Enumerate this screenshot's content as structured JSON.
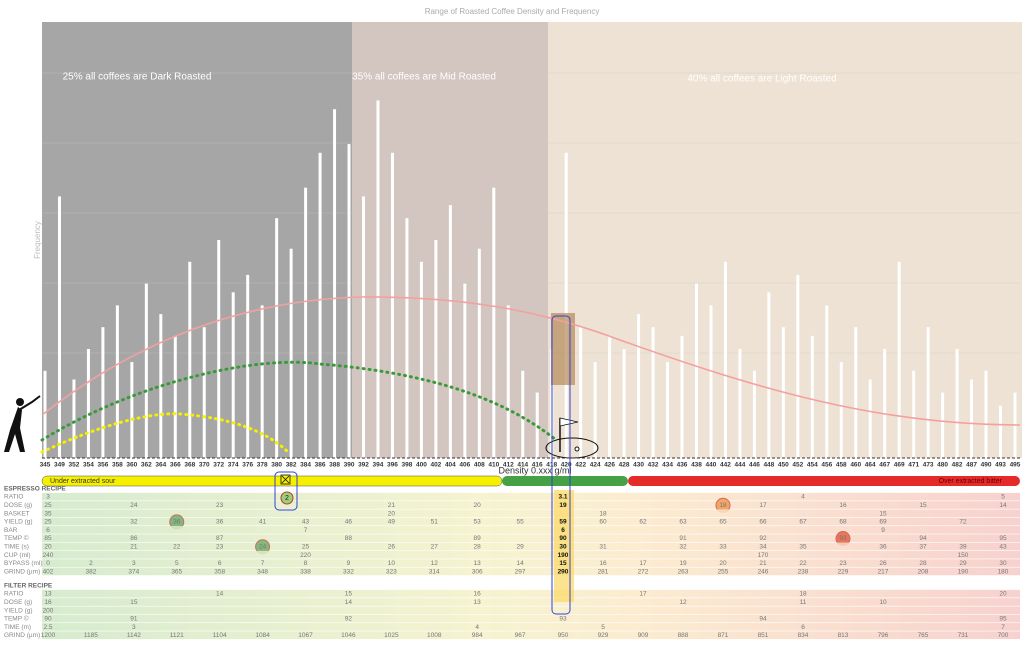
{
  "chart_data": {
    "type": "bar",
    "title": "Range of Roasted Coffee Density and Frequency",
    "ylabel": "Frequency",
    "xlabel": "Density 0.xxx g/ml",
    "zones": [
      "25% all coffees are Dark Roasted",
      "35% all coffees are Mid Roasted",
      "40% all coffees are Light Roasted"
    ],
    "extraction": [
      "Under extracted sour",
      "Over extracted bitter"
    ],
    "annotation": "2",
    "categories": [
      "345",
      "349",
      "352",
      "354",
      "356",
      "358",
      "360",
      "362",
      "364",
      "366",
      "368",
      "370",
      "372",
      "374",
      "376",
      "378",
      "380",
      "382",
      "384",
      "386",
      "388",
      "390",
      "392",
      "394",
      "396",
      "398",
      "400",
      "402",
      "404",
      "406",
      "408",
      "410",
      "412",
      "414",
      "416",
      "418",
      "420",
      "422",
      "424",
      "426",
      "428",
      "430",
      "432",
      "434",
      "436",
      "438",
      "440",
      "442",
      "444",
      "446",
      "448",
      "450",
      "452",
      "454",
      "456",
      "458",
      "460",
      "464",
      "467",
      "469",
      "471",
      "473",
      "480",
      "482",
      "487",
      "490",
      "493",
      "495"
    ],
    "values": [
      20,
      60,
      18,
      25,
      30,
      35,
      22,
      40,
      33,
      28,
      45,
      30,
      50,
      38,
      42,
      35,
      55,
      48,
      62,
      70,
      80,
      72,
      60,
      82,
      70,
      55,
      45,
      50,
      58,
      40,
      48,
      62,
      35,
      20,
      15,
      25,
      70,
      30,
      22,
      28,
      25,
      33,
      30,
      22,
      28,
      40,
      35,
      45,
      25,
      20,
      38,
      30,
      42,
      28,
      35,
      22,
      30,
      18,
      25,
      45,
      20,
      30,
      15,
      25,
      18,
      20,
      12,
      15
    ],
    "color": "#ffffff",
    "ylim": [
      0,
      100
    ]
  },
  "espresso_recipe": {
    "title": "ESPRESSO RECIPE",
    "rows": [
      {
        "label": "RATIO",
        "values": [
          3,
          null,
          null,
          null,
          null,
          null,
          null,
          null,
          null,
          null,
          null,
          null,
          3.1,
          null,
          null,
          null,
          null,
          null,
          4,
          null,
          null,
          null,
          null,
          5
        ]
      },
      {
        "label": "DOSE (g)",
        "values": [
          25,
          null,
          24,
          null,
          23,
          null,
          null,
          null,
          21,
          null,
          20,
          null,
          19,
          null,
          null,
          null,
          18,
          17,
          null,
          16,
          null,
          15,
          null,
          14
        ]
      },
      {
        "label": "BASKET",
        "values": [
          35,
          null,
          null,
          null,
          null,
          null,
          null,
          null,
          20,
          null,
          null,
          null,
          null,
          18,
          null,
          null,
          null,
          null,
          null,
          null,
          15,
          null,
          null,
          null
        ]
      },
      {
        "label": "YIELD (g)",
        "values": [
          25,
          null,
          32,
          36,
          36,
          41,
          43,
          46,
          49,
          51,
          53,
          55,
          59,
          60,
          62,
          63,
          65,
          66,
          67,
          68,
          69,
          null,
          72,
          null
        ]
      },
      {
        "label": "BAR",
        "values": [
          6,
          null,
          null,
          null,
          null,
          null,
          7,
          null,
          null,
          null,
          null,
          null,
          6,
          null,
          null,
          null,
          null,
          null,
          null,
          null,
          9,
          null,
          null,
          null
        ]
      },
      {
        "label": "TEMP ©",
        "values": [
          85,
          null,
          86,
          null,
          87,
          null,
          null,
          88,
          null,
          null,
          89,
          null,
          90,
          null,
          null,
          91,
          null,
          92,
          null,
          93,
          null,
          94,
          null,
          95
        ]
      },
      {
        "label": "TIME (s)",
        "values": [
          20,
          null,
          21,
          22,
          23,
          24,
          25,
          null,
          26,
          27,
          28,
          29,
          30,
          31,
          null,
          32,
          33,
          34,
          35,
          null,
          36,
          37,
          39,
          43
        ]
      },
      {
        "label": "CUP (ml)",
        "values": [
          240,
          null,
          null,
          null,
          null,
          null,
          220,
          null,
          null,
          null,
          null,
          null,
          190,
          null,
          null,
          null,
          null,
          170,
          null,
          null,
          null,
          null,
          150,
          null
        ]
      },
      {
        "label": "BYPASS (ml)",
        "values": [
          0,
          2,
          3,
          5,
          6,
          7,
          8,
          9,
          10,
          12,
          13,
          14,
          15,
          16,
          17,
          19,
          20,
          21,
          22,
          23,
          26,
          28,
          29,
          30
        ]
      },
      {
        "label": "GRIND (µm)",
        "values": [
          402,
          382,
          374,
          365,
          358,
          348,
          338,
          332,
          323,
          314,
          306,
          297,
          290,
          281,
          272,
          263,
          255,
          246,
          238,
          229,
          217,
          208,
          190,
          180
        ]
      }
    ]
  },
  "filter_recipe": {
    "title": "FILTER RECIPE",
    "rows": [
      {
        "label": "RATIO",
        "values": [
          13,
          null,
          null,
          null,
          14,
          null,
          null,
          15,
          null,
          null,
          16,
          null,
          null,
          null,
          17,
          null,
          null,
          null,
          18,
          null,
          null,
          null,
          null,
          20
        ]
      },
      {
        "label": "DOSE (g)",
        "values": [
          16,
          null,
          15,
          null,
          null,
          null,
          null,
          14,
          null,
          null,
          13,
          null,
          null,
          null,
          null,
          12,
          null,
          null,
          11,
          null,
          10,
          null,
          null,
          null
        ]
      },
      {
        "label": "YIELD (g)",
        "values": [
          200,
          null,
          null,
          null,
          null,
          null,
          null,
          null,
          null,
          null,
          null,
          null,
          null,
          null,
          null,
          null,
          null,
          null,
          null,
          null,
          null,
          null,
          null,
          null
        ]
      },
      {
        "label": "TEMP ©",
        "values": [
          90,
          null,
          91,
          null,
          null,
          null,
          null,
          92,
          null,
          null,
          null,
          null,
          93,
          null,
          null,
          null,
          null,
          94,
          null,
          null,
          null,
          null,
          null,
          95
        ]
      },
      {
        "label": "TIME (m)",
        "values": [
          2.5,
          null,
          3,
          null,
          null,
          null,
          null,
          null,
          null,
          null,
          4,
          null,
          null,
          5,
          null,
          null,
          null,
          null,
          6,
          null,
          null,
          null,
          null,
          7
        ]
      },
      {
        "label": "GRIND (µm)",
        "values": [
          1200,
          1185,
          1142,
          1121,
          1104,
          1084,
          1067,
          1046,
          1025,
          1008,
          984,
          967,
          950,
          929,
          909,
          888,
          871,
          851,
          834,
          813,
          796,
          765,
          731,
          700
        ]
      }
    ]
  }
}
